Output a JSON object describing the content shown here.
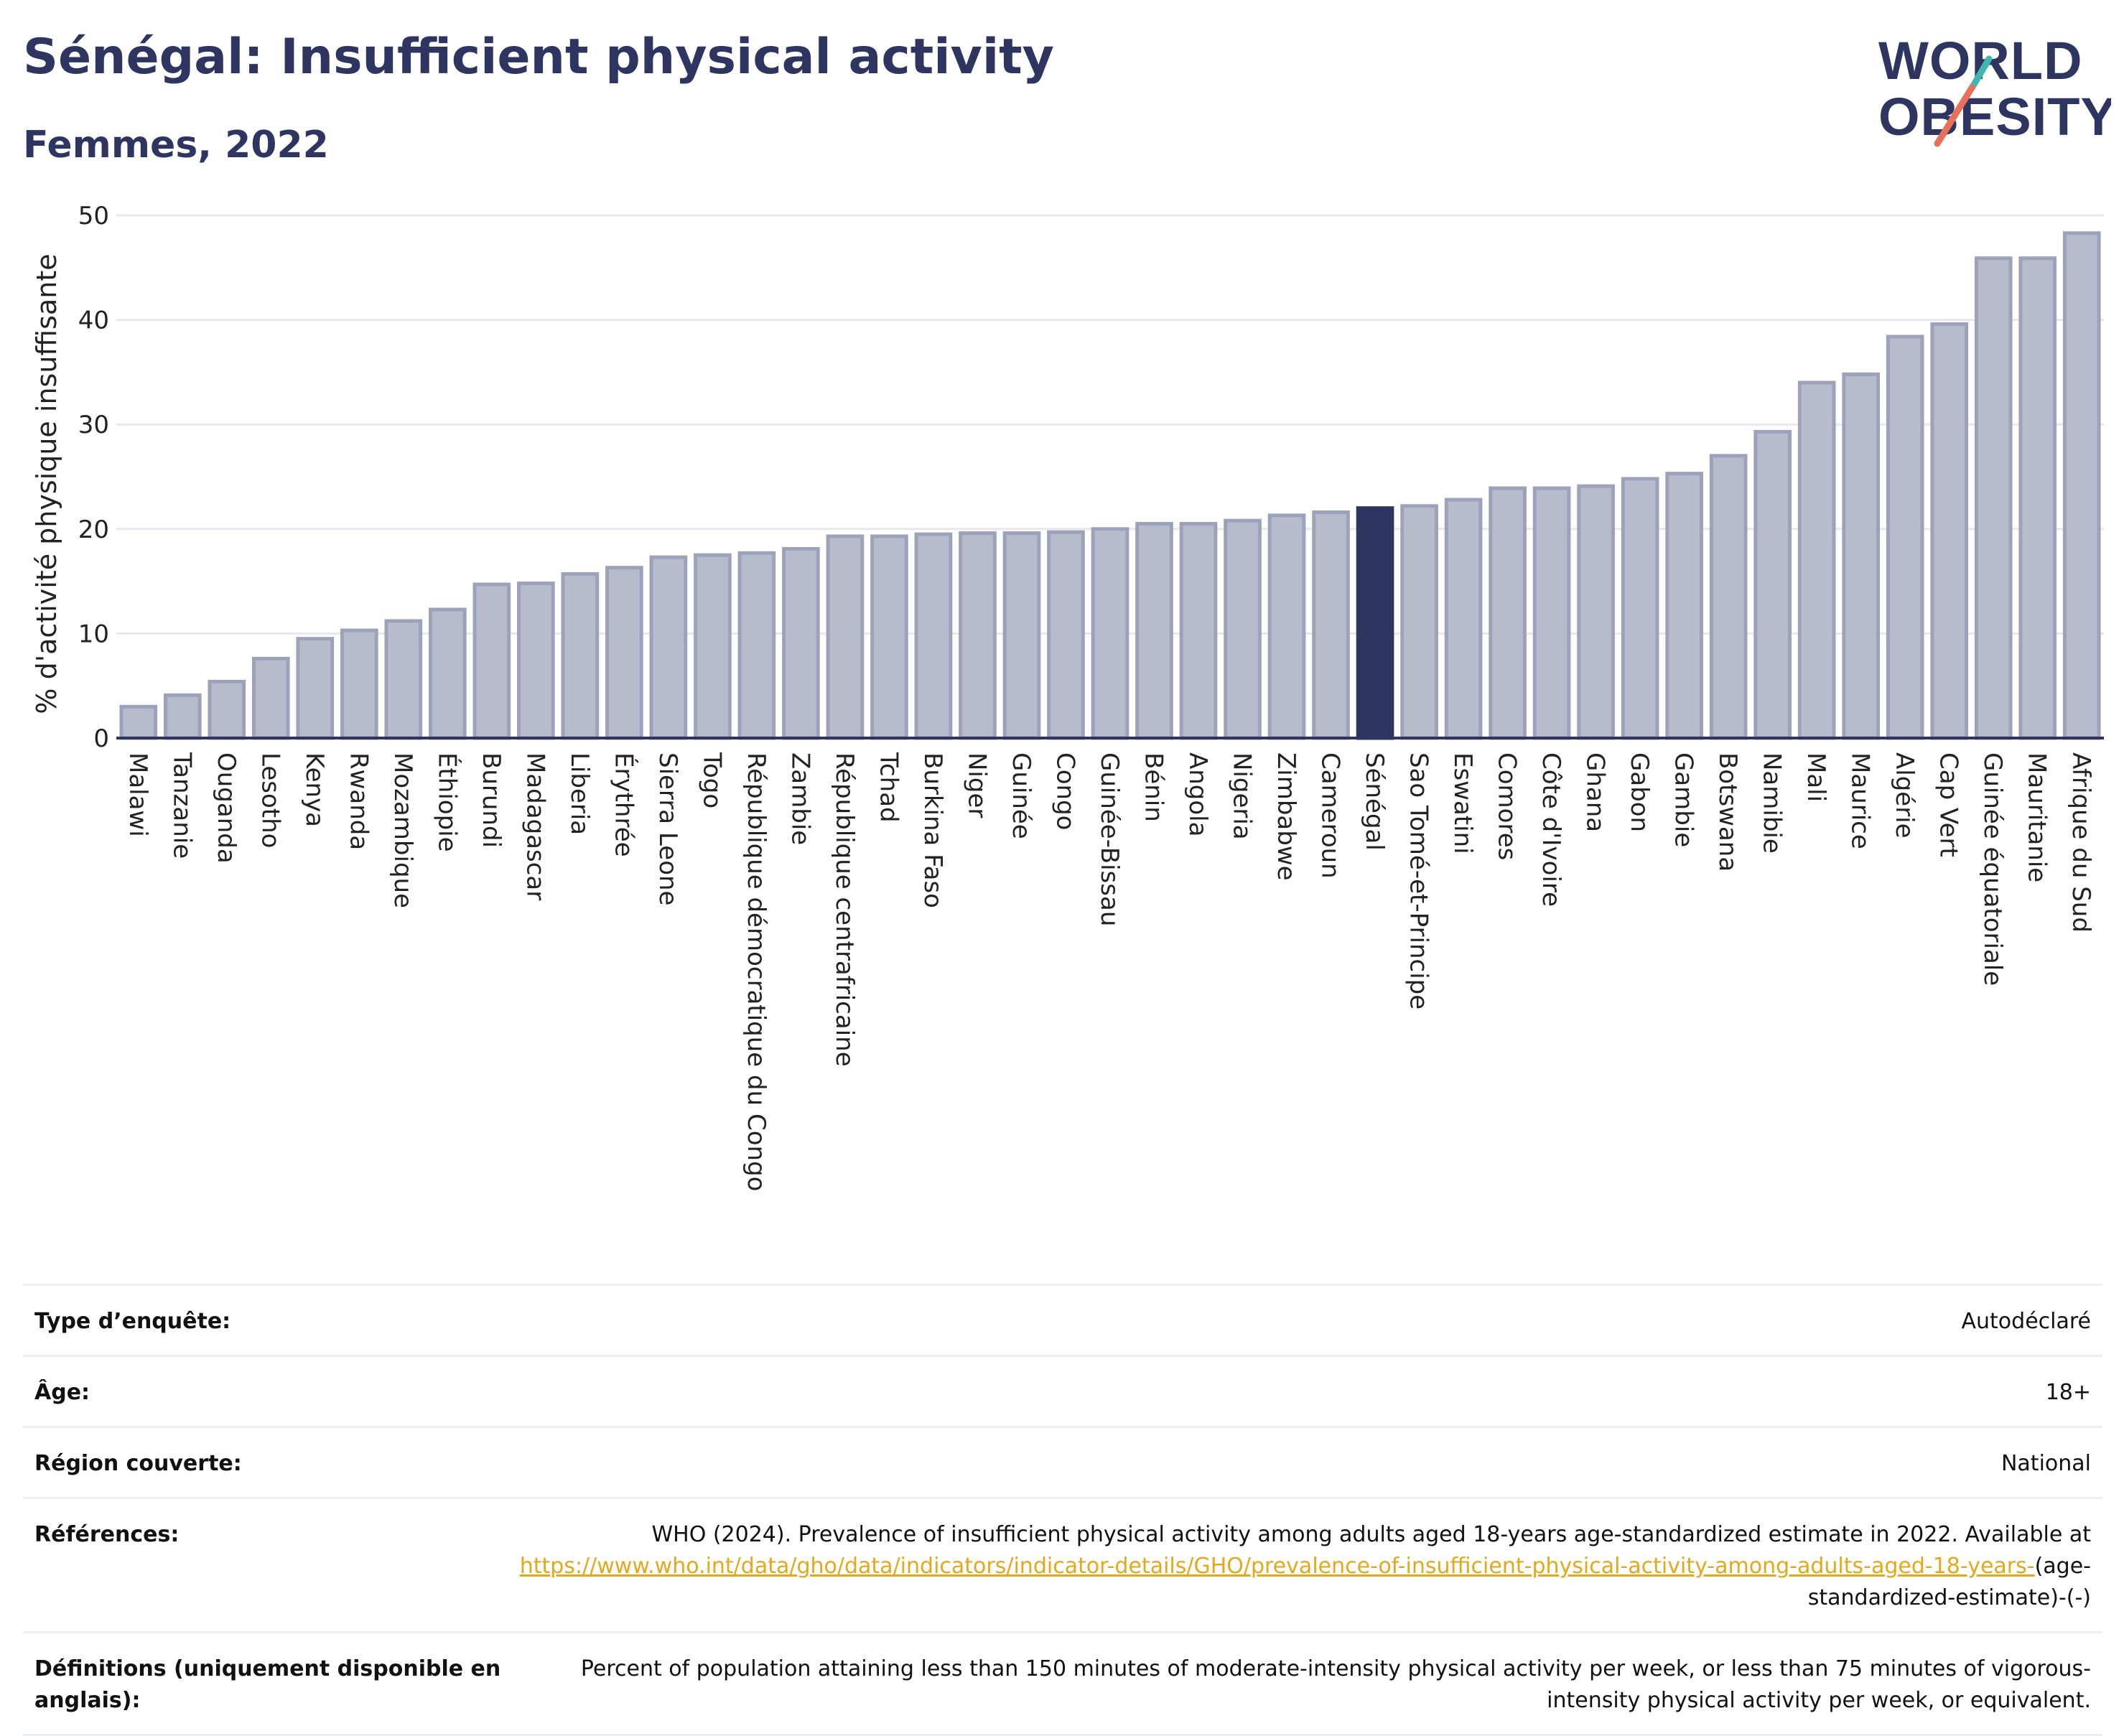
{
  "title": "Sénégal: Insufficient physical activity",
  "subtitle": "Femmes, 2022",
  "logo": {
    "line1": "WORLD",
    "line2": "OBESITY"
  },
  "colors": {
    "title": "#2d3560",
    "bar": "#b7bccc",
    "bar_edge": "#9da2bb",
    "highlight": "#2d3560",
    "link": "#e5a81a"
  },
  "chart_data": {
    "type": "bar",
    "ylabel": "% d'activité physique insuffisante",
    "ylim": [
      0,
      50
    ],
    "yticks": [
      0,
      10,
      20,
      30,
      40,
      50
    ],
    "grid": true,
    "highlight": "Sénégal",
    "categories": [
      "Malawi",
      "Tanzanie",
      "Ouganda",
      "Lesotho",
      "Kenya",
      "Rwanda",
      "Mozambique",
      "Éthiopie",
      "Burundi",
      "Madagascar",
      "Liberia",
      "Érythrée",
      "Sierra Leone",
      "Togo",
      "République démocratique du Congo",
      "Zambie",
      "République centrafricaine",
      "Tchad",
      "Burkina Faso",
      "Niger",
      "Guinée",
      "Congo",
      "Guinée-Bissau",
      "Bénin",
      "Angola",
      "Nigeria",
      "Zimbabwe",
      "Cameroun",
      "Sénégal",
      "Sao Tomé-et-Principe",
      "Eswatini",
      "Comores",
      "Côte d'Ivoire",
      "Ghana",
      "Gabon",
      "Gambie",
      "Botswana",
      "Namibie",
      "Mali",
      "Maurice",
      "Algérie",
      "Cap Vert",
      "Guinée équatoriale",
      "Mauritanie",
      "Afrique du Sud"
    ],
    "values": [
      3.0,
      4.1,
      5.4,
      7.6,
      9.5,
      10.3,
      11.2,
      12.3,
      14.7,
      14.8,
      15.7,
      16.3,
      17.3,
      17.5,
      17.7,
      18.1,
      19.3,
      19.3,
      19.5,
      19.6,
      19.6,
      19.7,
      20.0,
      20.5,
      20.5,
      20.8,
      21.3,
      21.6,
      22.0,
      22.2,
      22.8,
      23.9,
      23.9,
      24.1,
      24.8,
      25.3,
      27.0,
      29.3,
      34.0,
      34.8,
      38.4,
      39.6,
      45.9,
      45.9,
      48.3
    ]
  },
  "meta": [
    {
      "label": "Type d’enquête:",
      "value": "Autodéclaré"
    },
    {
      "label": "Âge:",
      "value": "18+"
    },
    {
      "label": "Région couverte:",
      "value": "National"
    },
    {
      "label": "Références:",
      "value_pre": "WHO (2024). Prevalence of insufficient physical activity among adults aged 18-years age-standardized estimate in 2022. Available at",
      "link": "https://www.who.int/data/gho/data/indicators/indicator-details/GHO/prevalence-of-insufficient-physical-activity-among-adults-aged-18-years-",
      "value_post": "(age-standardized-estimate)-(-)"
    },
    {
      "label": "Définitions (uniquement disponible en anglais):",
      "value": "Percent of population attaining less than 150 minutes of moderate-intensity physical activity per week, or less than 75 minutes of vigorous-intensity physical activity per week, or equivalent."
    }
  ]
}
